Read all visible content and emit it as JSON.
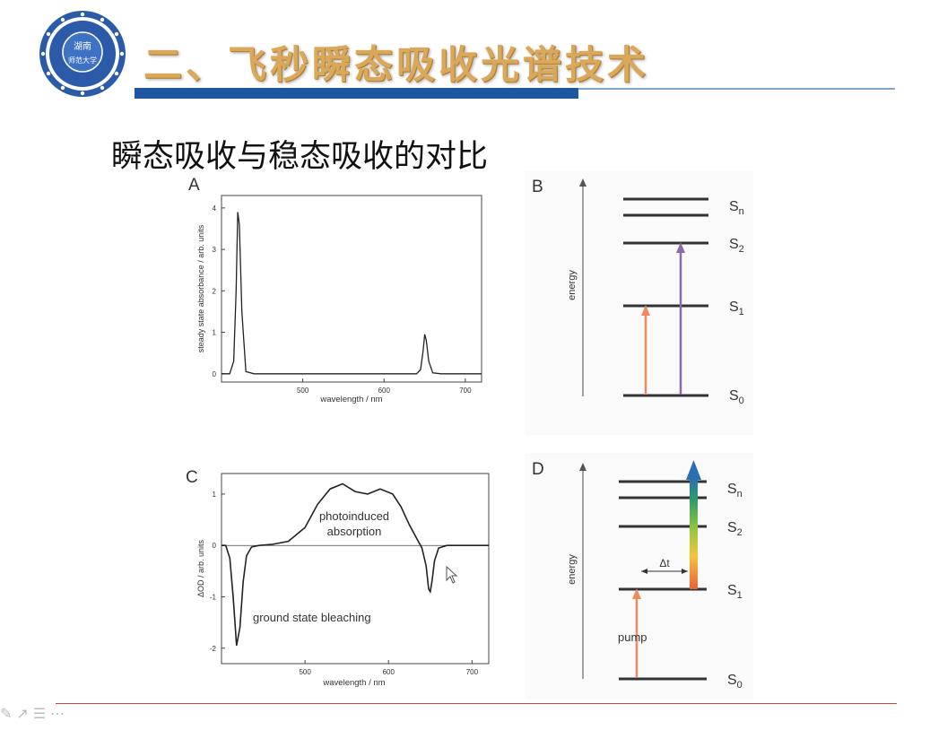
{
  "slide": {
    "title": "二、飞秒瞬态吸收光谱技术",
    "subtitle": "瞬态吸收与稳态吸收的对比",
    "logo": {
      "text_top": "湖南",
      "text_main": "师范大学",
      "icon": "university-seal-icon"
    },
    "nav_icons": [
      "pen-icon",
      "pointer-icon",
      "menu-icon",
      "more-icon"
    ]
  },
  "panels": {
    "A": {
      "label": "A",
      "ylabel": "steady state absorbance / arb. units",
      "xlabel": "wavelength / nm",
      "xticks": [
        "500",
        "600",
        "700"
      ],
      "yticks": [
        "0",
        "1",
        "2",
        "3",
        "4"
      ]
    },
    "B": {
      "label": "B",
      "axis_label": "energy",
      "levels": {
        "sn": "S",
        "sn_sub": "n",
        "s2": "S",
        "s2_sub": "2",
        "s1": "S",
        "s1_sub": "1",
        "s0": "S",
        "s0_sub": "0"
      },
      "arrow_colors": {
        "s0_s1": "#f08a5d",
        "s0_s2": "#8b6aa8"
      }
    },
    "C": {
      "label": "C",
      "ylabel": "ΔOD / arb. units",
      "xlabel": "wavelength / nm",
      "xticks": [
        "500",
        "600",
        "700"
      ],
      "yticks": [
        "1",
        "0",
        "-1",
        "-2"
      ],
      "annotation_absorption_line1": "photoinduced",
      "annotation_absorption_line2": "absorption",
      "annotation_bleaching": "ground state bleaching"
    },
    "D": {
      "label": "D",
      "axis_label": "energy",
      "levels": {
        "sn": "S",
        "sn_sub": "n",
        "s2": "S",
        "s2_sub": "2",
        "s1": "S",
        "s1_sub": "1",
        "s0": "S",
        "s0_sub": "0"
      },
      "delay_label": "Δt",
      "pump_label": "pump",
      "pump_color": "#f08a5d"
    }
  },
  "chart_data": [
    {
      "panel": "A",
      "type": "line",
      "title": "",
      "xlabel": "wavelength / nm",
      "ylabel": "steady state absorbance / arb. units",
      "xlim": [
        400,
        720
      ],
      "ylim": [
        -0.2,
        4.3
      ],
      "series": [
        {
          "x": [
            400,
            410,
            415,
            418,
            420,
            422,
            425,
            430,
            440,
            500,
            600,
            640,
            645,
            648,
            650,
            652,
            655,
            660,
            670,
            720
          ],
          "y": [
            0.0,
            0.0,
            0.3,
            2.0,
            3.9,
            3.6,
            1.5,
            0.05,
            0.0,
            0.0,
            0.0,
            0.0,
            0.1,
            0.55,
            0.95,
            0.8,
            0.3,
            0.02,
            0.0,
            0.0
          ]
        }
      ]
    },
    {
      "panel": "C",
      "type": "line",
      "title": "",
      "xlabel": "wavelength / nm",
      "ylabel": "ΔOD / arb. units",
      "xlim": [
        400,
        720
      ],
      "ylim": [
        -2.3,
        1.4
      ],
      "series": [
        {
          "x": [
            400,
            405,
            410,
            414,
            418,
            422,
            426,
            430,
            436,
            445,
            460,
            480,
            500,
            515,
            530,
            545,
            560,
            575,
            590,
            605,
            615,
            625,
            635,
            640,
            645,
            648,
            650,
            652,
            655,
            660,
            670,
            720
          ],
          "y": [
            0.0,
            0.0,
            -0.25,
            -1.0,
            -1.95,
            -1.6,
            -0.7,
            -0.2,
            -0.03,
            0.0,
            0.02,
            0.08,
            0.35,
            0.8,
            1.1,
            1.2,
            1.05,
            1.0,
            1.1,
            1.0,
            0.75,
            0.4,
            0.1,
            -0.05,
            -0.4,
            -0.85,
            -0.9,
            -0.7,
            -0.3,
            -0.05,
            0.0,
            0.0
          ]
        }
      ]
    }
  ]
}
